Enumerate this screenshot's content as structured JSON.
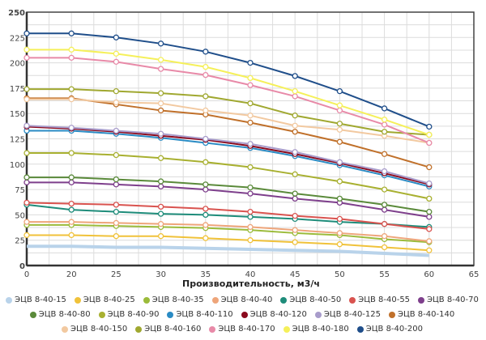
{
  "chart_data": {
    "type": "line",
    "title": "",
    "xlabel": "Производительность, м3/ч",
    "ylabel": "",
    "x_ticks": [
      "0",
      "20",
      "25",
      "30",
      "35",
      "40",
      "45",
      "50",
      "55",
      "60",
      "65"
    ],
    "x": [
      0,
      20,
      25,
      30,
      35,
      40,
      45,
      50,
      55,
      60
    ],
    "y_ticks": [
      "0",
      "25",
      "50",
      "75",
      "100",
      "125",
      "150",
      "175",
      "200",
      "225",
      "250"
    ],
    "ylim": [
      0,
      250
    ],
    "grid": true,
    "legend_position": "bottom",
    "series": [
      {
        "name": "ЭЦВ 8-40-15",
        "color": "#b9d3ea",
        "markers": false,
        "values": [
          19,
          19,
          18,
          18,
          17,
          16,
          15,
          14,
          12,
          10
        ]
      },
      {
        "name": "ЭЦВ 8-40-25",
        "color": "#f0c23a",
        "values": [
          30,
          30,
          29,
          29,
          27,
          25,
          23,
          21,
          18,
          15
        ]
      },
      {
        "name": "ЭЦВ 8-40-35",
        "color": "#9bbb3a",
        "values": [
          40,
          40,
          39,
          38,
          37,
          35,
          32,
          30,
          26,
          23
        ]
      },
      {
        "name": "ЭЦВ 8-40-40",
        "color": "#eea57a",
        "values": [
          43,
          43,
          42,
          41,
          40,
          38,
          35,
          32,
          29,
          24
        ]
      },
      {
        "name": "ЭЦВ 8-40-50",
        "color": "#1e8c7a",
        "values": [
          60,
          55,
          53,
          51,
          50,
          48,
          46,
          43,
          41,
          38
        ]
      },
      {
        "name": "ЭЦВ 8-40-55",
        "color": "#d9534f",
        "values": [
          62,
          61,
          60,
          58,
          56,
          53,
          49,
          46,
          41,
          36
        ]
      },
      {
        "name": "ЭЦВ 8-40-70",
        "color": "#7e3f8c",
        "values": [
          82,
          82,
          80,
          78,
          75,
          71,
          66,
          62,
          55,
          48
        ]
      },
      {
        "name": "ЭЦВ 8-40-80",
        "color": "#5a8a3a",
        "values": [
          87,
          87,
          85,
          83,
          80,
          77,
          71,
          66,
          60,
          53
        ]
      },
      {
        "name": "ЭЦВ 8-40-90",
        "color": "#a8b030",
        "values": [
          111,
          111,
          109,
          106,
          102,
          97,
          90,
          83,
          75,
          66
        ]
      },
      {
        "name": "ЭЦВ 8-40-110",
        "color": "#2a8bc4",
        "values": [
          133,
          133,
          130,
          126,
          121,
          116,
          108,
          99,
          89,
          78
        ]
      },
      {
        "name": "ЭЦВ 8-40-120",
        "color": "#8b0a1e",
        "values": [
          137,
          135,
          132,
          128,
          124,
          118,
          110,
          101,
          91,
          80
        ]
      },
      {
        "name": "ЭЦВ 8-40-125",
        "color": "#a89ccb",
        "values": [
          138,
          136,
          133,
          130,
          125,
          120,
          112,
          102,
          93,
          81
        ]
      },
      {
        "name": "ЭЦВ 8-40-140",
        "color": "#c0702a",
        "values": [
          165,
          165,
          159,
          153,
          149,
          141,
          132,
          122,
          110,
          97
        ]
      },
      {
        "name": "ЭЦВ 8-40-150",
        "color": "#f2c9a0",
        "values": [
          164,
          164,
          161,
          160,
          153,
          148,
          138,
          134,
          128,
          121
        ]
      },
      {
        "name": "ЭЦВ 8-40-160",
        "color": "#a0a830",
        "values": [
          174,
          174,
          172,
          170,
          167,
          160,
          148,
          140,
          132,
          129
        ]
      },
      {
        "name": "ЭЦВ 8-40-170",
        "color": "#e88aa8",
        "values": [
          205,
          205,
          201,
          194,
          188,
          178,
          167,
          153,
          139,
          121
        ]
      },
      {
        "name": "ЭЦВ 8-40-180",
        "color": "#f5f05a",
        "values": [
          213,
          213,
          209,
          203,
          196,
          185,
          172,
          158,
          144,
          129
        ]
      },
      {
        "name": "ЭЦВ 8-40-200",
        "color": "#1f4e8a",
        "values": [
          229,
          229,
          225,
          219,
          211,
          200,
          187,
          172,
          155,
          137
        ]
      }
    ]
  }
}
